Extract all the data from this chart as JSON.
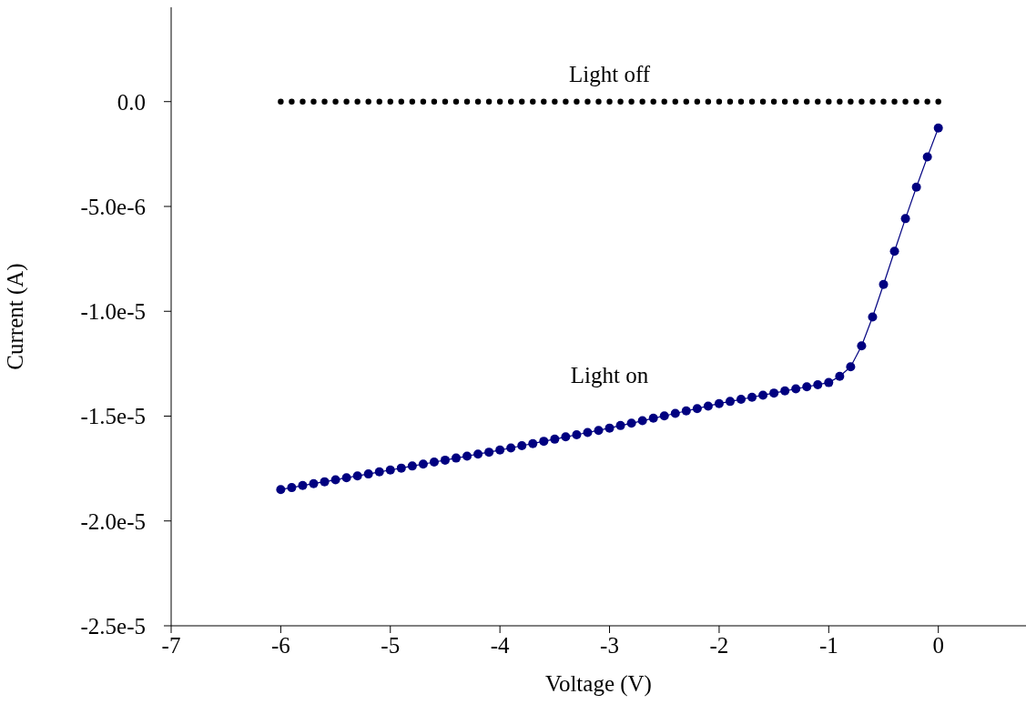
{
  "chart_data": {
    "type": "line",
    "xlabel": "Voltage (V)",
    "ylabel": "Current (A)",
    "xlim": [
      -7,
      0.8
    ],
    "xticks": [
      -7,
      -6,
      -5,
      -4,
      -3,
      -2,
      -1,
      0
    ],
    "ylim": [
      -2.5e-05,
      4.5e-06
    ],
    "yticks": [
      {
        "value": -2.5e-05,
        "label": "-2.5e-5"
      },
      {
        "value": -2e-05,
        "label": "-2.0e-5"
      },
      {
        "value": -1.5e-05,
        "label": "-1.5e-5"
      },
      {
        "value": -1e-05,
        "label": "-1.0e-5"
      },
      {
        "value": -5e-06,
        "label": "-5.0e-6"
      },
      {
        "value": 0,
        "label": "0.0"
      }
    ],
    "grid": false,
    "legend": false,
    "marker": "circle",
    "x": [
      -6,
      -5.9,
      -5.8,
      -5.7,
      -5.6,
      -5.5,
      -5.4,
      -5.3,
      -5.2,
      -5.1,
      -5,
      -4.9,
      -4.8,
      -4.7,
      -4.6,
      -4.5,
      -4.4,
      -4.3,
      -4.2,
      -4.1,
      -4,
      -3.9,
      -3.8,
      -3.7,
      -3.6,
      -3.5,
      -3.4,
      -3.3,
      -3.2,
      -3.1,
      -3,
      -2.9,
      -2.8,
      -2.7,
      -2.6,
      -2.5,
      -2.4,
      -2.3,
      -2.2,
      -2.1,
      -2,
      -1.9,
      -1.8,
      -1.7,
      -1.6,
      -1.5,
      -1.4,
      -1.3,
      -1.2,
      -1.1,
      -1,
      -0.9,
      -0.8,
      -0.7,
      -0.6,
      -0.5,
      -0.4,
      -0.3,
      -0.2,
      -0.1,
      0
    ],
    "series": [
      {
        "name": "Light off",
        "type": "scatter",
        "color": "#000000",
        "values": [
          0,
          0,
          0,
          0,
          0,
          0,
          0,
          0,
          0,
          0,
          0,
          0,
          0,
          0,
          0,
          0,
          0,
          0,
          0,
          0,
          0,
          0,
          0,
          0,
          0,
          0,
          0,
          0,
          0,
          0,
          0,
          0,
          0,
          0,
          0,
          0,
          0,
          0,
          0,
          0,
          0,
          0,
          0,
          0,
          0,
          0,
          0,
          0,
          0,
          0,
          0,
          0,
          0,
          0,
          0,
          0,
          0,
          0,
          0,
          0,
          0
        ]
      },
      {
        "name": "Light on",
        "type": "line",
        "color": "#000080",
        "values": [
          -1.85e-05,
          -1.841e-05,
          -1.831e-05,
          -1.822e-05,
          -1.813e-05,
          -1.804e-05,
          -1.794e-05,
          -1.785e-05,
          -1.776e-05,
          -1.766e-05,
          -1.757e-05,
          -1.748e-05,
          -1.738e-05,
          -1.729e-05,
          -1.719e-05,
          -1.71e-05,
          -1.7e-05,
          -1.691e-05,
          -1.681e-05,
          -1.672e-05,
          -1.662e-05,
          -1.652e-05,
          -1.641e-05,
          -1.631e-05,
          -1.62e-05,
          -1.61e-05,
          -1.599e-05,
          -1.589e-05,
          -1.578e-05,
          -1.568e-05,
          -1.557e-05,
          -1.545e-05,
          -1.534e-05,
          -1.522e-05,
          -1.51e-05,
          -1.499e-05,
          -1.487e-05,
          -1.475e-05,
          -1.464e-05,
          -1.452e-05,
          -1.44e-05,
          -1.43e-05,
          -1.42e-05,
          -1.41e-05,
          -1.4e-05,
          -1.39e-05,
          -1.38e-05,
          -1.37e-05,
          -1.36e-05,
          -1.35e-05,
          -1.34e-05,
          -1.31e-05,
          -1.265e-05,
          -1.165e-05,
          -1.027e-05,
          -8.72e-06,
          -7.14e-06,
          -5.58e-06,
          -4.08e-06,
          -2.64e-06,
          -1.26e-06
        ]
      }
    ]
  }
}
